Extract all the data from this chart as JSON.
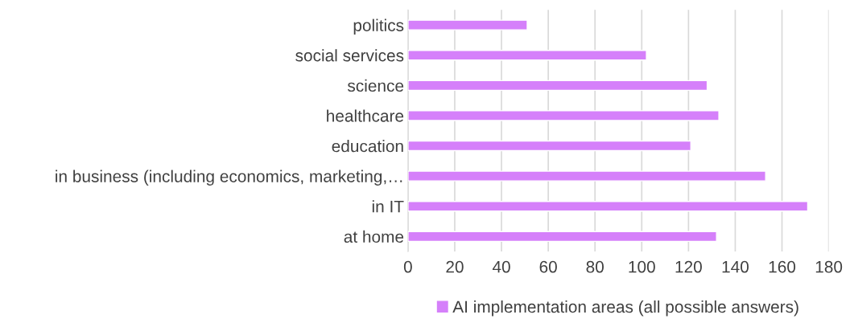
{
  "chart_data": {
    "type": "bar",
    "orientation": "horizontal",
    "categories": [
      "politics",
      "social services",
      "science",
      "healthcare",
      "education",
      "in business (including economics, marketing,…",
      "in IT",
      "at home"
    ],
    "series": [
      {
        "name": "AI implementation areas (all possible answers)",
        "color": "#d580fa",
        "values": [
          51,
          102,
          128,
          133,
          121,
          153,
          171,
          132
        ]
      }
    ],
    "xlim": [
      0,
      180
    ],
    "xticks": [
      0,
      20,
      40,
      60,
      80,
      100,
      120,
      140,
      160,
      180
    ],
    "grid": "x",
    "legend": "bottom"
  }
}
